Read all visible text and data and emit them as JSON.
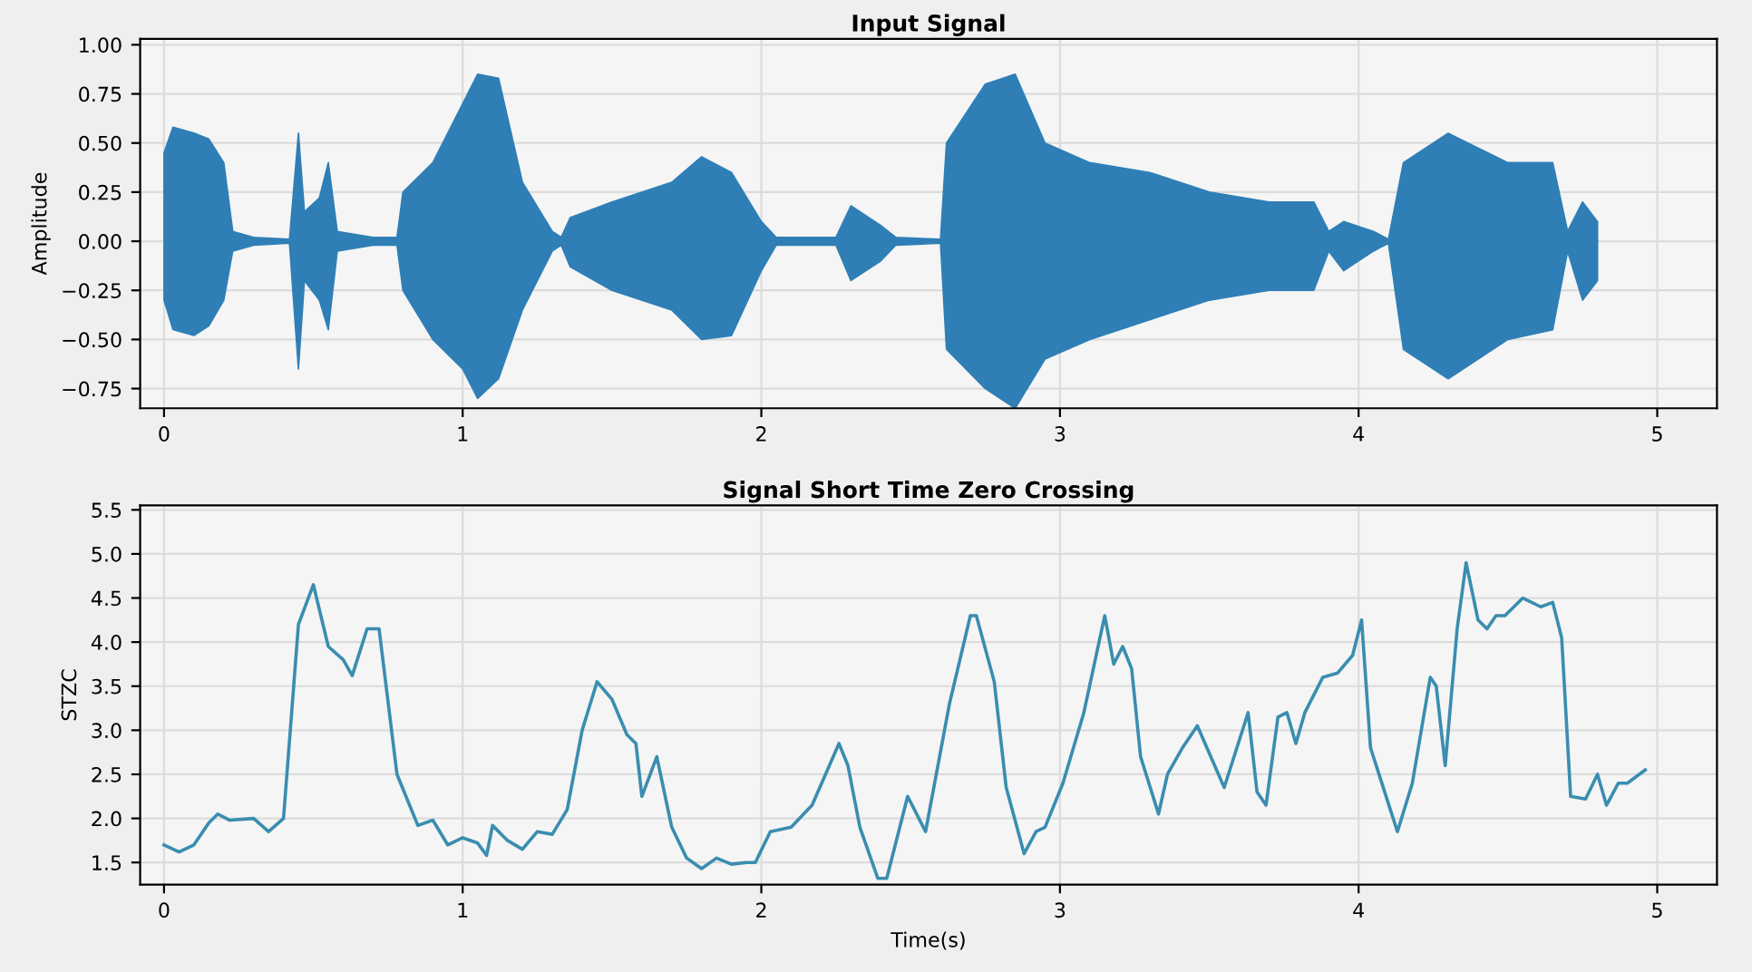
{
  "chart_data": [
    {
      "type": "area",
      "title": "Input Signal",
      "ylabel": "Amplitude",
      "xlim": [
        -0.08,
        5.2
      ],
      "xticks": [
        0,
        1,
        2,
        3,
        4,
        5
      ],
      "ylim": [
        -0.85,
        1.03
      ],
      "yticks": [
        {
          "value": -0.75,
          "label": "−0.75"
        },
        {
          "value": -0.5,
          "label": "−0.50"
        },
        {
          "value": -0.25,
          "label": "−0.25"
        },
        {
          "value": 0,
          "label": "0.00"
        },
        {
          "value": 0.25,
          "label": "0.25"
        },
        {
          "value": 0.5,
          "label": "0.50"
        },
        {
          "value": 0.75,
          "label": "0.75"
        },
        {
          "value": 1.0,
          "label": "1.00"
        }
      ],
      "grid": true,
      "x": [
        0.0,
        0.03,
        0.1,
        0.15,
        0.2,
        0.23,
        0.3,
        0.42,
        0.45,
        0.47,
        0.52,
        0.55,
        0.58,
        0.7,
        0.78,
        0.8,
        0.9,
        1.0,
        1.05,
        1.12,
        1.2,
        1.3,
        1.33,
        1.36,
        1.5,
        1.7,
        1.8,
        1.9,
        2.0,
        2.05,
        2.25,
        2.3,
        2.4,
        2.45,
        2.6,
        2.62,
        2.75,
        2.85,
        2.95,
        3.1,
        3.3,
        3.5,
        3.7,
        3.85,
        3.9,
        3.95,
        4.05,
        4.1,
        4.15,
        4.3,
        4.5,
        4.65,
        4.7,
        4.75,
        4.8
      ],
      "series": [
        {
          "color": "#2f7fb6",
          "values": [
            0.45,
            0.58,
            0.55,
            0.52,
            0.4,
            0.05,
            0.02,
            0.01,
            0.55,
            0.15,
            0.22,
            0.4,
            0.05,
            0.02,
            0.02,
            0.25,
            0.4,
            0.7,
            0.85,
            0.83,
            0.3,
            0.05,
            0.02,
            0.12,
            0.2,
            0.3,
            0.43,
            0.35,
            0.1,
            0.02,
            0.02,
            0.18,
            0.08,
            0.02,
            0.01,
            0.5,
            0.8,
            0.85,
            0.5,
            0.4,
            0.35,
            0.25,
            0.2,
            0.2,
            0.05,
            0.1,
            0.05,
            0.01,
            0.4,
            0.55,
            0.4,
            0.4,
            0.05,
            0.2,
            0.1
          ]
        },
        {
          "color": "#2f7fb6",
          "values": [
            -0.3,
            -0.45,
            -0.48,
            -0.43,
            -0.3,
            -0.05,
            -0.02,
            -0.01,
            -0.65,
            -0.2,
            -0.3,
            -0.45,
            -0.05,
            -0.02,
            -0.02,
            -0.25,
            -0.5,
            -0.65,
            -0.8,
            -0.7,
            -0.35,
            -0.05,
            -0.02,
            -0.13,
            -0.25,
            -0.35,
            -0.5,
            -0.48,
            -0.15,
            -0.02,
            -0.02,
            -0.2,
            -0.1,
            -0.02,
            -0.01,
            -0.55,
            -0.75,
            -0.85,
            -0.6,
            -0.5,
            -0.4,
            -0.3,
            -0.25,
            -0.25,
            -0.05,
            -0.15,
            -0.05,
            -0.01,
            -0.55,
            -0.7,
            -0.5,
            -0.45,
            -0.05,
            -0.3,
            -0.2
          ]
        }
      ]
    },
    {
      "type": "line",
      "title": "Signal Short Time Zero Crossing",
      "xlabel": "Time(s)",
      "ylabel": "STZC",
      "xlim": [
        -0.08,
        5.2
      ],
      "xticks": [
        0,
        1,
        2,
        3,
        4,
        5
      ],
      "ylim": [
        1.25,
        5.55
      ],
      "yticks": [
        {
          "value": 1.5,
          "label": "1.5"
        },
        {
          "value": 2.0,
          "label": "2.0"
        },
        {
          "value": 2.5,
          "label": "2.5"
        },
        {
          "value": 3.0,
          "label": "3.0"
        },
        {
          "value": 3.5,
          "label": "3.5"
        },
        {
          "value": 4.0,
          "label": "4.0"
        },
        {
          "value": 4.5,
          "label": "4.5"
        },
        {
          "value": 5.0,
          "label": "5.0"
        },
        {
          "value": 5.5,
          "label": "5.5"
        }
      ],
      "grid": true,
      "series": [
        {
          "color": "#3a8db0",
          "x": [
            0.0,
            0.05,
            0.1,
            0.15,
            0.18,
            0.22,
            0.3,
            0.35,
            0.4,
            0.45,
            0.5,
            0.55,
            0.6,
            0.63,
            0.68,
            0.72,
            0.78,
            0.85,
            0.9,
            0.95,
            1.0,
            1.05,
            1.08,
            1.1,
            1.15,
            1.2,
            1.25,
            1.3,
            1.35,
            1.4,
            1.45,
            1.5,
            1.55,
            1.58,
            1.6,
            1.65,
            1.7,
            1.75,
            1.8,
            1.85,
            1.9,
            1.95,
            1.98,
            2.03,
            2.1,
            2.17,
            2.26,
            2.29,
            2.33,
            2.39,
            2.42,
            2.49,
            2.55,
            2.63,
            2.7,
            2.72,
            2.78,
            2.82,
            2.88,
            2.92,
            2.95,
            3.01,
            3.08,
            3.15,
            3.18,
            3.21,
            3.24,
            3.27,
            3.33,
            3.36,
            3.41,
            3.46,
            3.55,
            3.63,
            3.66,
            3.69,
            3.73,
            3.76,
            3.79,
            3.82,
            3.88,
            3.93,
            3.98,
            4.01,
            4.04,
            4.13,
            4.18,
            4.24,
            4.26,
            4.29,
            4.33,
            4.36,
            4.4,
            4.43,
            4.46,
            4.49,
            4.55,
            4.61,
            4.65,
            4.68,
            4.71,
            4.76,
            4.8,
            4.83,
            4.87,
            4.9,
            4.96
          ],
          "values": [
            1.7,
            1.62,
            1.7,
            1.95,
            2.05,
            1.98,
            2.0,
            1.85,
            2.0,
            4.2,
            4.65,
            3.95,
            3.8,
            3.62,
            4.15,
            4.15,
            2.5,
            1.92,
            1.98,
            1.7,
            1.78,
            1.72,
            1.58,
            1.92,
            1.75,
            1.65,
            1.85,
            1.82,
            2.1,
            3.0,
            3.55,
            3.35,
            2.95,
            2.85,
            2.25,
            2.7,
            1.9,
            1.55,
            1.43,
            1.55,
            1.48,
            1.5,
            1.5,
            1.85,
            1.9,
            2.15,
            2.85,
            2.6,
            1.9,
            1.32,
            1.32,
            2.25,
            1.85,
            3.3,
            4.3,
            4.3,
            3.55,
            2.35,
            1.6,
            1.85,
            1.9,
            2.4,
            3.2,
            4.3,
            3.75,
            3.95,
            3.7,
            2.7,
            2.05,
            2.5,
            2.8,
            3.05,
            2.35,
            3.2,
            2.3,
            2.15,
            3.15,
            3.2,
            2.85,
            3.2,
            3.6,
            3.65,
            3.85,
            4.25,
            2.8,
            1.85,
            2.4,
            3.6,
            3.5,
            2.6,
            4.15,
            4.9,
            4.25,
            4.15,
            4.3,
            4.3,
            4.5,
            4.4,
            4.45,
            4.05,
            2.25,
            2.22,
            2.5,
            2.15,
            2.4,
            2.4,
            2.55
          ]
        }
      ]
    }
  ]
}
